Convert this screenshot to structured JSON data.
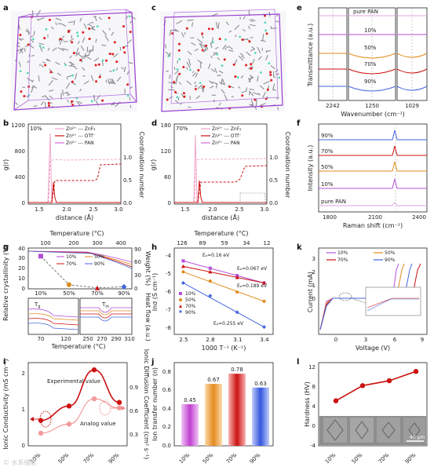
{
  "panels": {
    "a": "a",
    "b": "b",
    "c": "c",
    "d": "d",
    "e": "e",
    "f": "f",
    "g": "g",
    "h": "h",
    "i": "i",
    "j": "j",
    "k": "k",
    "l": "l"
  },
  "panel_b": {
    "tag": "10%",
    "ylabel": "g(r)",
    "y2label": "Coordination number",
    "xlabel": "distance (Å)",
    "legend": [
      "Zn²⁺ --- ZnF₂",
      "Zn²⁺ --- OTf⁻",
      "Zn²⁺ --- PAN"
    ],
    "yticks": [
      "0",
      "400",
      "800",
      "1200"
    ],
    "xticks": [
      "1.5",
      "2.0",
      "2.5",
      "3.0"
    ],
    "y2ticks": [
      "0.0",
      "0.5",
      "1.0"
    ]
  },
  "panel_d": {
    "tag": "70%",
    "ylabel": "g(r)",
    "y2label": "Coordination number",
    "xlabel": "distance (Å)",
    "legend": [
      "Zn²⁺ --- ZnF₂",
      "Zn²⁺ --- OTf⁻",
      "Zn²⁺ --- PAN"
    ],
    "yticks": [
      "0",
      "60",
      "120",
      "180"
    ],
    "xticks": [
      "1.5",
      "2.0",
      "2.5",
      "3.0"
    ],
    "y2ticks": [
      "0.0",
      "0.5",
      "1.0"
    ]
  },
  "panel_e": {
    "ylabel": "Transmittance (a.u.)",
    "xlabel": "Wavenumber (cm⁻¹)",
    "labels": [
      "pure PAN",
      "10%",
      "50%",
      "70%",
      "90%"
    ],
    "xticks": [
      "2242",
      "1250",
      "1029"
    ]
  },
  "panel_f": {
    "ylabel": "Intensity (a.u.)",
    "xlabel": "Raman shift (cm⁻¹)",
    "labels": [
      "90%",
      "70%",
      "50%",
      "10%",
      "pure PAN"
    ],
    "xticks": [
      "1800",
      "2100",
      "2400"
    ]
  },
  "panel_g": {
    "top_xlabel": "Temperature (°C)",
    "top_xticks": [
      "100",
      "200",
      "300",
      "400"
    ],
    "ylabel": "Relative crystallinity (%)",
    "y2label": "Weight (%)",
    "y2label_lower": "Heat flow (a.u.)",
    "yticks": [
      "0",
      "10",
      "20",
      "30",
      "40"
    ],
    "y2ticks": [
      "0",
      "30",
      "60",
      "90"
    ],
    "legend": [
      "10%",
      "50%",
      "70%",
      "90%"
    ],
    "cat_ticks": [
      "10%",
      "50%",
      "70%",
      "90%"
    ],
    "tg": "T",
    "tg_sub": "g",
    "tm": "T",
    "tm_sub": "m",
    "bottom_xlabel": "Temperature (°C)",
    "bottom_xticks_left": [
      "70",
      "120"
    ],
    "bottom_xticks_right": [
      "250",
      "270",
      "290",
      "310"
    ]
  },
  "panel_h": {
    "top_xlabel": "Temperature (°C)",
    "top_xticks": [
      "126",
      "89",
      "59",
      "34",
      "12"
    ],
    "ylabel": "lnσ (S cm⁻¹)",
    "xlabel": "1000 T⁻¹ (K⁻¹)",
    "yticks": [
      "-4",
      "-5",
      "-6",
      "-7",
      "-8"
    ],
    "xticks": [
      "2.5",
      "2.8",
      "3.1",
      "3.4"
    ],
    "legend": [
      "10%",
      "50%",
      "70%",
      "90%"
    ],
    "ea": [
      "Eₐ=0.16 eV",
      "Eₐ=0.067 eV",
      "Eₐ=0.189 eV",
      "Eₐ=0.255 eV"
    ]
  },
  "panel_k": {
    "ylabel": "Current (mA)",
    "xlabel": "Voltage (V)",
    "legend": [
      "10%",
      "50%",
      "70%",
      "90%"
    ],
    "xticks": [
      "0",
      "3",
      "6",
      "9"
    ],
    "yticks": [
      "0",
      "1",
      "2",
      "3"
    ]
  },
  "panel_i": {
    "ylabel": "Ionic Conductivity (mS cm⁻¹)",
    "y2label": "Ionic Diffusion Coefficient (cm² s⁻¹)",
    "yticks": [
      "0",
      "1",
      "2"
    ],
    "y2ticks": [
      "0.3",
      "0.6",
      "0.9"
    ],
    "cats": [
      "10%",
      "50%",
      "70%",
      "90%"
    ],
    "exp_label": "Experimental value",
    "analog_label": "Analog value",
    "watermark": "© 水系储能"
  },
  "panel_j": {
    "ylabel": "Ion transfer number (n)",
    "yticks": [
      "0.0",
      "0.2",
      "0.4",
      "0.6",
      "0.8"
    ],
    "cats": [
      "10%",
      "50%",
      "70%",
      "90%"
    ],
    "values": [
      "0.45",
      "0.67",
      "0.78",
      "0.63"
    ]
  },
  "panel_l": {
    "ylabel": "Hardness (HV)",
    "yticks": [
      "-4",
      "0",
      "4",
      "8",
      "12"
    ],
    "cats": [
      "10%",
      "50%",
      "70%",
      "90%"
    ],
    "scalebar": "40 μm"
  },
  "chart_data": [
    {
      "type": "scatter",
      "panel": "g",
      "categories": [
        "10%",
        "50%",
        "70%",
        "90%"
      ],
      "values": [
        32,
        4,
        1,
        2
      ],
      "ylim": [
        0,
        40
      ]
    },
    {
      "type": "line",
      "panel": "h",
      "series": [
        {
          "name": "10%",
          "x": [
            2.5,
            2.8,
            3.1,
            3.4
          ],
          "y": [
            -4.4,
            -4.8,
            -5.2,
            -5.6
          ]
        },
        {
          "name": "50%",
          "x": [
            2.5,
            2.8,
            3.1,
            3.4
          ],
          "y": [
            -5.0,
            -5.5,
            -6.1,
            -6.6
          ]
        },
        {
          "name": "70%",
          "x": [
            2.5,
            2.8,
            3.1,
            3.4
          ],
          "y": [
            -4.7,
            -5.0,
            -5.3,
            -5.6
          ]
        },
        {
          "name": "90%",
          "x": [
            2.5,
            2.8,
            3.1,
            3.4
          ],
          "y": [
            -5.6,
            -6.3,
            -7.2,
            -8.0
          ]
        }
      ],
      "xlim": [
        2.4,
        3.5
      ],
      "ylim": [
        -8.4,
        -3.7
      ]
    },
    {
      "type": "line",
      "panel": "i",
      "categories": [
        "10%",
        "50%",
        "70%",
        "90%"
      ],
      "series": [
        {
          "name": "Experimental value",
          "values": [
            0.7,
            1.1,
            2.1,
            1.2
          ]
        },
        {
          "name": "Analog value",
          "values": [
            0.35,
            0.6,
            1.3,
            1.05
          ]
        }
      ],
      "ylim": [
        0,
        2.3
      ]
    },
    {
      "type": "bar",
      "panel": "j",
      "categories": [
        "10%",
        "50%",
        "70%",
        "90%"
      ],
      "values": [
        0.45,
        0.67,
        0.78,
        0.63
      ],
      "ylim": [
        0,
        0.9
      ]
    },
    {
      "type": "line",
      "panel": "l",
      "categories": [
        "10%",
        "50%",
        "70%",
        "90%"
      ],
      "values": [
        5.2,
        8.3,
        9.3,
        11.2
      ],
      "ylim": [
        -4,
        13
      ]
    }
  ],
  "colors": {
    "c10": "#b44fd8",
    "c50": "#e08a1c",
    "c70": "#cc1111",
    "c90": "#4466dd",
    "pan": "#d06cd6",
    "pink": "#f0a6c8",
    "red": "#d42020"
  }
}
